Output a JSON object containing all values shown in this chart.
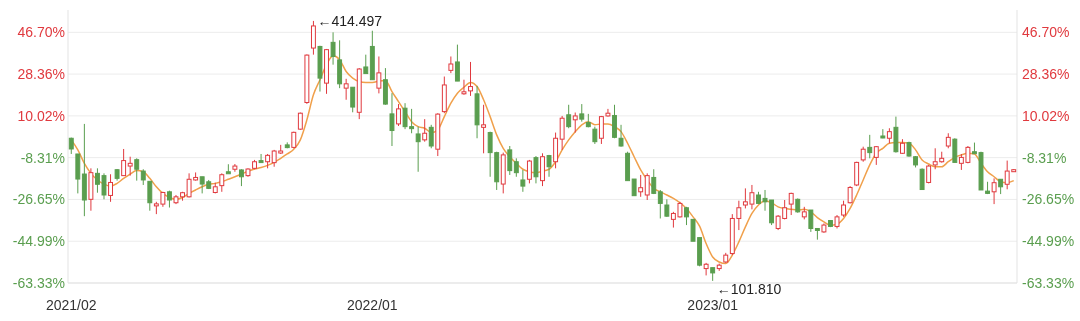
{
  "chart_data": {
    "type": "candlestick",
    "categories": [
      "2021/02",
      null,
      null,
      null,
      null,
      null,
      null,
      null,
      null,
      null,
      null,
      null,
      null,
      null,
      null,
      null,
      null,
      null,
      null,
      null,
      null,
      null,
      null,
      null,
      null,
      null,
      null,
      null,
      null,
      null,
      null,
      null,
      null,
      null,
      null,
      null,
      null,
      null,
      null,
      null,
      null,
      null,
      null,
      null,
      null,
      null,
      "2022/01",
      null,
      null,
      null,
      null,
      null,
      null,
      null,
      null,
      null,
      null,
      null,
      null,
      null,
      null,
      null,
      null,
      null,
      null,
      null,
      null,
      null,
      null,
      null,
      null,
      null,
      null,
      null,
      null,
      null,
      null,
      null,
      null,
      null,
      null,
      null,
      null,
      null,
      null,
      null,
      null,
      null,
      null,
      null,
      null,
      null,
      null,
      null,
      null,
      null,
      null,
      null,
      "2023/01",
      null,
      null,
      null,
      null,
      null,
      null,
      null,
      null,
      null,
      null,
      null,
      null,
      null,
      null,
      null,
      null,
      null,
      null,
      null,
      null,
      null,
      null,
      null,
      null,
      null,
      null,
      null,
      null,
      null,
      null,
      null,
      null,
      null,
      null,
      null,
      null,
      null,
      null,
      null,
      null,
      null,
      null,
      null,
      null,
      null,
      null
    ],
    "ohlc": [
      [
        0.2,
        0.5,
        -6.7,
        -4.5
      ],
      [
        -6.7,
        -6.7,
        -24.0,
        -17.7
      ],
      [
        -15.5,
        6.5,
        -34.0,
        -26.9
      ],
      [
        -26.6,
        -13.0,
        -31.6,
        -14.9
      ],
      [
        -15.2,
        -13.0,
        -23.7,
        -20.0
      ],
      [
        -16.2,
        -15.2,
        -26.6,
        -24.7
      ],
      [
        -24.9,
        -15.6,
        -27.7,
        -19.2
      ],
      [
        -13.6,
        -13.3,
        -18.4,
        -17.4
      ],
      [
        -16.2,
        -4.5,
        -16.2,
        -9.6
      ],
      [
        -12.0,
        -7.9,
        -16.2,
        -10.8
      ],
      [
        -9.2,
        -8.6,
        -18.4,
        -13.4
      ],
      [
        -14.2,
        -13.4,
        -20.3,
        -18.1
      ],
      [
        -18.7,
        -18.7,
        -31.6,
        -28.1
      ],
      [
        -29.0,
        -27.7,
        -33.1,
        -28.6
      ],
      [
        -28.7,
        -23.3,
        -29.9,
        -23.6
      ],
      [
        -23.3,
        -22.8,
        -30.2,
        -26.9
      ],
      [
        -28.1,
        -24.7,
        -28.7,
        -25.5
      ],
      [
        -25.5,
        -23.3,
        -27.2,
        -23.7
      ],
      [
        -25.5,
        -15.2,
        -25.8,
        -17.8
      ],
      [
        -18.1,
        -14.8,
        -18.4,
        -17.0
      ],
      [
        -16.7,
        -16.7,
        -24.0,
        -19.9
      ],
      [
        -18.9,
        -18.1,
        -22.1,
        -21.8
      ],
      [
        -23.6,
        -19.3,
        -24.0,
        -21.1
      ],
      [
        -20.6,
        -15.2,
        -23.3,
        -15.8
      ],
      [
        -14.5,
        -11.2,
        -14.9,
        -14.9
      ],
      [
        -13.4,
        -11.1,
        -14.5,
        -12.0
      ],
      [
        -13.7,
        -13.4,
        -20.8,
        -16.7
      ],
      [
        -16.2,
        -13.0,
        -16.7,
        -13.3
      ],
      [
        -13.0,
        -9.3,
        -13.4,
        -10.1
      ],
      [
        -9.6,
        -6.7,
        -10.1,
        -10.1
      ],
      [
        -10.1,
        -6.7,
        -13.0,
        -7.3
      ],
      [
        -10.5,
        -4.9,
        -12.3,
        -5.4
      ],
      [
        -6.1,
        -2.7,
        -6.7,
        -5.4
      ],
      [
        -2.7,
        -1.6,
        -4.2,
        -3.9
      ],
      [
        -3.8,
        3.1,
        -4.2,
        2.8
      ],
      [
        4.2,
        11.5,
        3.9,
        11.2
      ],
      [
        15.9,
        37.0,
        15.3,
        36.7
      ],
      [
        39.8,
        51.7,
        36.9,
        49.5
      ],
      [
        40.5,
        40.8,
        20.7,
        26.6
      ],
      [
        24.4,
        39.4,
        19.7,
        39.1
      ],
      [
        42.3,
        46.7,
        32.5,
        36.1
      ],
      [
        34.6,
        43.2,
        22.2,
        24.1
      ],
      [
        22.2,
        26.3,
        17.1,
        24.1
      ],
      [
        22.6,
        22.6,
        11.6,
        13.9
      ],
      [
        11.6,
        31.0,
        8.6,
        30.6
      ],
      [
        31.5,
        36.9,
        28.6,
        28.6
      ],
      [
        40.5,
        47.4,
        25.9,
        25.9
      ],
      [
        22.2,
        36.1,
        19.9,
        28.9
      ],
      [
        25.9,
        31.0,
        14.9,
        15.2
      ],
      [
        10.9,
        20.0,
        -3.2,
        3.6
      ],
      [
        6.5,
        15.2,
        5.6,
        13.1
      ],
      [
        13.4,
        15.6,
        4.2,
        5.3
      ],
      [
        5.3,
        13.1,
        2.4,
        4.6
      ],
      [
        2.1,
        5.3,
        -14.5,
        -1.3
      ],
      [
        -0.5,
        8.6,
        -1.3,
        2.4
      ],
      [
        5.0,
        6.1,
        -4.2,
        -3.2
      ],
      [
        -4.6,
        11.2,
        -7.6,
        10.8
      ],
      [
        11.9,
        27.3,
        11.2,
        23.6
      ],
      [
        30.0,
        36.1,
        28.8,
        32.8
      ],
      [
        33.7,
        41.3,
        25.3,
        25.3
      ],
      [
        19.9,
        25.9,
        19.3,
        20.6
      ],
      [
        21.0,
        33.7,
        18.8,
        22.9
      ],
      [
        19.7,
        23.2,
        0.2,
        6.1
      ],
      [
        5.0,
        14.9,
        -6.4,
        6.1
      ],
      [
        2.7,
        3.1,
        -16.7,
        -6.1
      ],
      [
        -6.1,
        -5.7,
        -22.5,
        -18.9
      ],
      [
        -19.9,
        -6.1,
        -24.0,
        -7.1
      ],
      [
        -4.9,
        -3.2,
        -15.9,
        -14.0
      ],
      [
        -10.1,
        -8.6,
        -16.7,
        -14.9
      ],
      [
        -18.1,
        -13.7,
        -23.3,
        -20.8
      ],
      [
        -17.8,
        -9.3,
        -19.6,
        -9.8
      ],
      [
        -8.3,
        -7.6,
        -19.6,
        -16.7
      ],
      [
        -18.4,
        -6.4,
        -20.8,
        -7.9
      ],
      [
        -7.4,
        -7.1,
        -16.7,
        -12.3
      ],
      [
        -10.1,
        2.7,
        -13.0,
        0.2
      ],
      [
        -0.2,
        10.0,
        -4.9,
        9.0
      ],
      [
        10.5,
        14.9,
        4.6,
        5.3
      ],
      [
        8.3,
        11.5,
        2.7,
        10.0
      ],
      [
        10.9,
        15.2,
        7.5,
        8.6
      ],
      [
        7.1,
        10.9,
        5.0,
        5.3
      ],
      [
        4.2,
        5.3,
        -2.3,
        -1.3
      ],
      [
        0.2,
        10.0,
        -2.3,
        9.7
      ],
      [
        10.0,
        13.1,
        9.7,
        11.2
      ],
      [
        10.2,
        14.9,
        0.2,
        0.6
      ],
      [
        0.2,
        6.1,
        -3.5,
        -3.2
      ],
      [
        -6.4,
        -5.7,
        -18.4,
        -18.4
      ],
      [
        -17.7,
        -17.7,
        -25.0,
        -25.0
      ],
      [
        -23.3,
        -15.9,
        -25.5,
        -21.5
      ],
      [
        -24.7,
        -15.2,
        -26.9,
        -16.2
      ],
      [
        -17.0,
        -13.4,
        -24.3,
        -24.0
      ],
      [
        -23.3,
        -22.5,
        -35.0,
        -28.4
      ],
      [
        -29.1,
        -26.6,
        -34.3,
        -34.0
      ],
      [
        -35.4,
        -32.1,
        -39.0,
        -32.8
      ],
      [
        -34.3,
        -27.7,
        -34.6,
        -28.4
      ],
      [
        -30.3,
        -29.9,
        -37.9,
        -34.3
      ],
      [
        -35.4,
        -35.4,
        -45.0,
        -45.0
      ],
      [
        -43.4,
        -43.4,
        -56.0,
        -55.5
      ],
      [
        -57.0,
        -54.5,
        -60.0,
        -55.1
      ],
      [
        -56.6,
        -56.6,
        -62.4,
        -58.9
      ],
      [
        -57.0,
        -54.8,
        -58.0,
        -55.5
      ],
      [
        -54.1,
        -50.1,
        -54.5,
        -51.1
      ],
      [
        -50.4,
        -33.1,
        -51.1,
        -35.0
      ],
      [
        -35.0,
        -27.2,
        -40.1,
        -30.3
      ],
      [
        -29.1,
        -21.8,
        -30.6,
        -27.7
      ],
      [
        -28.7,
        -20.3,
        -31.0,
        -23.7
      ],
      [
        -24.7,
        -23.3,
        -28.7,
        -28.4
      ],
      [
        -26.2,
        -22.5,
        -31.6,
        -27.7
      ],
      [
        -26.9,
        -26.9,
        -37.9,
        -36.9
      ],
      [
        -39.4,
        -33.5,
        -40.1,
        -34.0
      ],
      [
        -35.0,
        -26.9,
        -35.4,
        -30.3
      ],
      [
        -28.7,
        -23.7,
        -33.5,
        -24.0
      ],
      [
        -26.6,
        -26.2,
        -32.5,
        -32.1
      ],
      [
        -34.3,
        -29.9,
        -35.4,
        -32.1
      ],
      [
        -31.3,
        -31.3,
        -40.9,
        -39.4
      ],
      [
        -39.4,
        -39.4,
        -44.3,
        -39.9
      ],
      [
        -40.9,
        -37.2,
        -41.3,
        -37.9
      ],
      [
        -35.9,
        -35.7,
        -38.8,
        -38.5
      ],
      [
        -38.5,
        -33.5,
        -39.4,
        -34.3
      ],
      [
        -33.5,
        -27.2,
        -34.3,
        -29.1
      ],
      [
        -28.1,
        -20.8,
        -28.4,
        -21.4
      ],
      [
        -20.3,
        -10.1,
        -20.8,
        -10.4
      ],
      [
        -9.3,
        -3.5,
        -10.1,
        -4.6
      ],
      [
        -3.8,
        1.7,
        -8.6,
        -6.1
      ],
      [
        -8.2,
        -3.2,
        -11.5,
        -3.5
      ],
      [
        1.2,
        4.2,
        0.2,
        0.6
      ],
      [
        0.2,
        4.6,
        -2.0,
        3.1
      ],
      [
        5.0,
        9.7,
        -6.1,
        -5.7
      ],
      [
        -6.4,
        -0.2,
        -6.7,
        -2.0
      ],
      [
        -1.7,
        -1.3,
        -7.9,
        -7.6
      ],
      [
        -7.9,
        -7.6,
        -12.6,
        -11.5
      ],
      [
        -13.4,
        -13.0,
        -22.5,
        -22.3
      ],
      [
        -19.2,
        -11.5,
        -19.6,
        -12.0
      ],
      [
        -11.5,
        -4.2,
        -13.4,
        -10.1
      ],
      [
        -10.1,
        -5.7,
        -10.5,
        -8.6
      ],
      [
        -3.2,
        2.4,
        -4.2,
        0.6
      ],
      [
        -0.2,
        0.2,
        -10.4,
        -10.4
      ],
      [
        -10.8,
        -6.7,
        -13.7,
        -8.2
      ],
      [
        -10.4,
        -3.2,
        -10.8,
        -3.8
      ],
      [
        -5.7,
        -1.7,
        -6.7,
        -6.4
      ],
      [
        -6.1,
        -5.7,
        -22.5,
        -22.5
      ],
      [
        -23.0,
        -18.9,
        -24.3,
        -24.0
      ],
      [
        -23.3,
        -17.4,
        -28.7,
        -19.3
      ],
      [
        -17.8,
        -17.8,
        -24.3,
        -21.1
      ],
      [
        -20.0,
        -9.6,
        -22.2,
        -14.2
      ],
      [
        -14.4,
        -13.3,
        -14.6,
        -13.6
      ]
    ],
    "series": [
      {
        "type": "line",
        "color": "#f0a04b",
        "values": [
          -0.5,
          -4.9,
          -10.8,
          -15.2,
          -18.1,
          -19.9,
          -20.8,
          -19.6,
          -17.4,
          -15.5,
          -14.0,
          -14.5,
          -17.4,
          -21.1,
          -24.0,
          -25.8,
          -26.6,
          -25.8,
          -24.0,
          -22.5,
          -21.1,
          -20.0,
          -19.6,
          -18.9,
          -17.8,
          -16.7,
          -15.5,
          -14.3,
          -13.3,
          -12.6,
          -11.7,
          -10.4,
          -8.6,
          -6.7,
          -4.6,
          -0.5,
          8.3,
          19.3,
          25.9,
          32.5,
          36.4,
          34.7,
          29.5,
          26.6,
          25.1,
          24.7,
          24.7,
          25.3,
          25.6,
          20.7,
          16.3,
          11.9,
          7.5,
          5.3,
          4.6,
          2.7,
          3.9,
          9.7,
          15.6,
          20.0,
          22.6,
          24.7,
          22.9,
          17.1,
          9.7,
          1.7,
          -4.2,
          -7.9,
          -10.8,
          -13.4,
          -14.5,
          -14.9,
          -14.2,
          -13.4,
          -10.1,
          -4.9,
          -0.5,
          3.1,
          6.1,
          7.5,
          6.1,
          6.5,
          6.5,
          5.3,
          3.1,
          -2.0,
          -7.9,
          -13.7,
          -18.1,
          -21.8,
          -23.3,
          -24.7,
          -26.2,
          -28.1,
          -30.6,
          -34.3,
          -38.4,
          -46.0,
          -51.9,
          -54.1,
          -54.8,
          -51.1,
          -45.3,
          -38.7,
          -32.8,
          -29.1,
          -27.2,
          -28.1,
          -29.9,
          -30.6,
          -31.0,
          -31.3,
          -31.0,
          -32.1,
          -34.6,
          -36.5,
          -38.0,
          -37.5,
          -35.0,
          -30.6,
          -24.7,
          -18.1,
          -11.5,
          -6.4,
          -4.2,
          -2.0,
          -1.7,
          -1.7,
          -2.0,
          -4.9,
          -9.3,
          -11.1,
          -12.3,
          -12.3,
          -10.1,
          -8.2,
          -7.1,
          -6.4,
          -6.7,
          -10.8,
          -14.5,
          -16.7,
          -18.9,
          -19.3,
          -18.4
        ]
      }
    ],
    "ylim": [
      -63.33,
      56.5
    ],
    "yticks": [
      {
        "value": -63.33,
        "label": "-63.33%"
      },
      {
        "value": -44.99,
        "label": "-44.99%"
      },
      {
        "value": -26.65,
        "label": "-26.65%"
      },
      {
        "value": -8.31,
        "label": "-8.31%"
      },
      {
        "value": 10.02,
        "label": "10.02%"
      },
      {
        "value": 28.36,
        "label": "28.36%"
      },
      {
        "value": 46.7,
        "label": "46.70%"
      }
    ],
    "y2lim": [
      -63.33,
      56.5
    ],
    "y2ticks": [
      {
        "value": -63.33,
        "label": "-63.33%"
      },
      {
        "value": -44.99,
        "label": "-44.99%"
      },
      {
        "value": -26.65,
        "label": "-26.65%"
      },
      {
        "value": -8.31,
        "label": "-8.31%"
      },
      {
        "value": 10.02,
        "label": "10.02%"
      },
      {
        "value": 28.36,
        "label": "28.36%"
      },
      {
        "value": 46.7,
        "label": "46.70%"
      }
    ],
    "grid": "y",
    "annotations": [
      "←414.497",
      "←101.810"
    ]
  }
}
